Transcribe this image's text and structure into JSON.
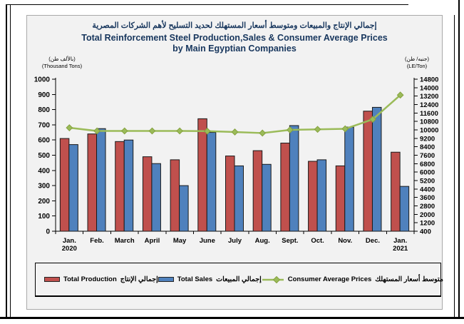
{
  "page": {
    "title_ar": "إجمالي الإنتاج والمبيعات ومتوسط أسعار المستهلك لحديد التسليح لأهم الشركات المصرية",
    "title_en_line1": "Total Reinforcement Steel Production,Sales & Consumer Average Prices",
    "title_en_line2": "by Main Egyptian Companies"
  },
  "axes": {
    "left_unit_ar": "(بالألف طن)",
    "left_unit_en": "(Thousand Tons)",
    "right_unit_ar": "(جنيه/ طن)",
    "right_unit_en": "(LE/Ton)"
  },
  "legend": {
    "production_en": "Total Production",
    "production_ar": "إجمالي الإنتاج",
    "sales_en": "Total Sales",
    "sales_ar": "إجمالي المبيعات",
    "prices_en": "Consumer Average Prices",
    "prices_ar": "متوسط أسعار المستهلك"
  },
  "colors": {
    "production": "#C0504D",
    "sales": "#4F81BD",
    "prices": "#9BBB59",
    "prices_marker_stroke": "#85A23F",
    "bar_stroke": "#1A1A1A",
    "title": "#17365D",
    "chart_bg": "#F2F2F2",
    "axis": "#000000"
  },
  "chart_data": {
    "type": "bar",
    "subtype": "grouped-bars-with-line",
    "title": "Total Reinforcement Steel Production,Sales & Consumer Average Prices by Main Egyptian Companies",
    "categories": [
      [
        "Jan.",
        "2020"
      ],
      [
        "Feb."
      ],
      [
        "March"
      ],
      [
        "April"
      ],
      [
        "May"
      ],
      [
        "June"
      ],
      [
        "July"
      ],
      [
        "Aug."
      ],
      [
        "Sept."
      ],
      [
        "Oct."
      ],
      [
        "Nov."
      ],
      [
        "Dec."
      ],
      [
        "Jan.",
        "2021"
      ]
    ],
    "series": [
      {
        "name": "Total Production",
        "type": "bar",
        "axis": "left",
        "values": [
          610,
          640,
          590,
          490,
          470,
          740,
          495,
          530,
          580,
          460,
          430,
          790,
          520
        ]
      },
      {
        "name": "Total Sales",
        "type": "bar",
        "axis": "left",
        "values": [
          570,
          675,
          600,
          445,
          300,
          650,
          430,
          440,
          695,
          470,
          685,
          815,
          295
        ]
      },
      {
        "name": "Consumer Average Prices",
        "type": "line",
        "axis": "right",
        "values": [
          10200,
          9900,
          9900,
          9900,
          9900,
          9880,
          9800,
          9700,
          10000,
          10050,
          10100,
          11000,
          13300
        ]
      }
    ],
    "left_axis": {
      "label": "(Thousand Tons)",
      "min": 0,
      "max": 1000,
      "step": 100
    },
    "right_axis": {
      "label": "(LE/Ton)",
      "min": 400,
      "max": 14800,
      "step": 800
    },
    "grid": false,
    "legend_position": "bottom"
  }
}
